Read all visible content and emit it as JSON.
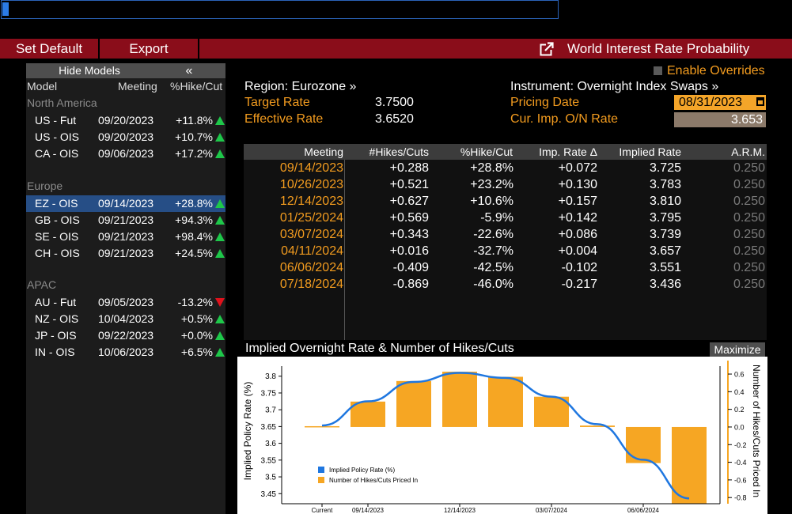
{
  "toolbar": {
    "set_default": "Set Default",
    "export": "Export",
    "title": "World Interest Rate Probability"
  },
  "models_panel": {
    "hide_label": "Hide Models",
    "collapse_glyph": "«",
    "headers": {
      "model": "Model",
      "meeting": "Meeting",
      "pct": "%Hike/Cut"
    },
    "regions": [
      {
        "name": "North America",
        "rows": [
          {
            "model": "US - Fut",
            "meeting": "09/20/2023",
            "pct": "+11.8%",
            "dir": "up"
          },
          {
            "model": "US - OIS",
            "meeting": "09/20/2023",
            "pct": "+10.7%",
            "dir": "up"
          },
          {
            "model": "CA - OIS",
            "meeting": "09/06/2023",
            "pct": "+17.2%",
            "dir": "up"
          }
        ]
      },
      {
        "name": "Europe",
        "rows": [
          {
            "model": "EZ - OIS",
            "meeting": "09/14/2023",
            "pct": "+28.8%",
            "dir": "up",
            "selected": true
          },
          {
            "model": "GB - OIS",
            "meeting": "09/21/2023",
            "pct": "+94.3%",
            "dir": "up"
          },
          {
            "model": "SE - OIS",
            "meeting": "09/21/2023",
            "pct": "+98.4%",
            "dir": "up"
          },
          {
            "model": "CH - OIS",
            "meeting": "09/21/2023",
            "pct": "+24.5%",
            "dir": "up"
          }
        ]
      },
      {
        "name": "APAC",
        "rows": [
          {
            "model": "AU - Fut",
            "meeting": "09/05/2023",
            "pct": "-13.2%",
            "dir": "down"
          },
          {
            "model": "NZ - OIS",
            "meeting": "10/04/2023",
            "pct": "+0.5%",
            "dir": "up"
          },
          {
            "model": "JP - OIS",
            "meeting": "09/22/2023",
            "pct": "+0.0%",
            "dir": "up"
          },
          {
            "model": "IN - OIS",
            "meeting": "10/06/2023",
            "pct": "+6.5%",
            "dir": "up"
          }
        ]
      }
    ]
  },
  "info": {
    "enable_overrides": "Enable Overrides",
    "region": "Region: Eurozone »",
    "instrument": "Instrument: Overnight Index Swaps »",
    "target_rate_label": "Target Rate",
    "target_rate": "3.7500",
    "effective_rate_label": "Effective Rate",
    "effective_rate": "3.6520",
    "pricing_date_label": "Pricing Date",
    "pricing_date": "08/31/2023",
    "imp_rate_label": "Cur. Imp. O/N Rate",
    "imp_rate": "3.653"
  },
  "table": {
    "headers": [
      "Meeting",
      "#Hikes/Cuts",
      "%Hike/Cut",
      "Imp. Rate Δ",
      "Implied Rate",
      "A.R.M."
    ],
    "rows": [
      [
        "09/14/2023",
        "+0.288",
        "+28.8%",
        "+0.072",
        "3.725",
        "0.250"
      ],
      [
        "10/26/2023",
        "+0.521",
        "+23.2%",
        "+0.130",
        "3.783",
        "0.250"
      ],
      [
        "12/14/2023",
        "+0.627",
        "+10.6%",
        "+0.157",
        "3.810",
        "0.250"
      ],
      [
        "01/25/2024",
        "+0.569",
        "-5.9%",
        "+0.142",
        "3.795",
        "0.250"
      ],
      [
        "03/07/2024",
        "+0.343",
        "-22.6%",
        "+0.086",
        "3.739",
        "0.250"
      ],
      [
        "04/11/2024",
        "+0.016",
        "-32.7%",
        "+0.004",
        "3.657",
        "0.250"
      ],
      [
        "06/06/2024",
        "-0.409",
        "-42.5%",
        "-0.102",
        "3.551",
        "0.250"
      ],
      [
        "07/18/2024",
        "-0.869",
        "-46.0%",
        "-0.217",
        "3.436",
        "0.250"
      ]
    ]
  },
  "chart": {
    "title": "Implied Overnight Rate & Number of Hikes/Cuts",
    "maximize": "Maximize"
  },
  "chart_data": {
    "type": "bar",
    "categories": [
      "Current",
      "09/14/2023",
      "10/26/2023",
      "12/14/2023",
      "01/25/2024",
      "03/07/2024",
      "04/11/2024",
      "06/06/2024",
      "07/18/2024"
    ],
    "x_tick_labels": [
      "Current",
      "09/14/2023",
      "12/14/2023",
      "03/07/2024",
      "06/06/2024"
    ],
    "series": [
      {
        "name": "Implied Policy Rate (%)",
        "type": "line",
        "axis": "left",
        "color": "#1f77e0",
        "values": [
          3.653,
          3.725,
          3.783,
          3.81,
          3.795,
          3.739,
          3.657,
          3.551,
          3.436
        ]
      },
      {
        "name": "Number of Hikes/Cuts Priced In",
        "type": "bar",
        "axis": "right",
        "color": "#f6a623",
        "values": [
          0,
          0.288,
          0.521,
          0.627,
          0.569,
          0.343,
          0.016,
          -0.409,
          -0.869
        ]
      }
    ],
    "ylabel": "Implied Policy Rate (%)",
    "y2label": "Number of Hikes/Cuts Priced In",
    "ylim": [
      3.42,
      3.83
    ],
    "y2lim": [
      -0.87,
      0.69
    ],
    "yticks": [
      "3.8",
      "3.75",
      "3.7",
      "3.65",
      "3.6",
      "3.55",
      "3.5",
      "3.45"
    ],
    "y2ticks": [
      "0.6",
      "0.4",
      "0.2",
      "0.0",
      "-0.2",
      "-0.4",
      "-0.6",
      "-0.8"
    ],
    "legend": "bottom-left",
    "grid": false
  }
}
